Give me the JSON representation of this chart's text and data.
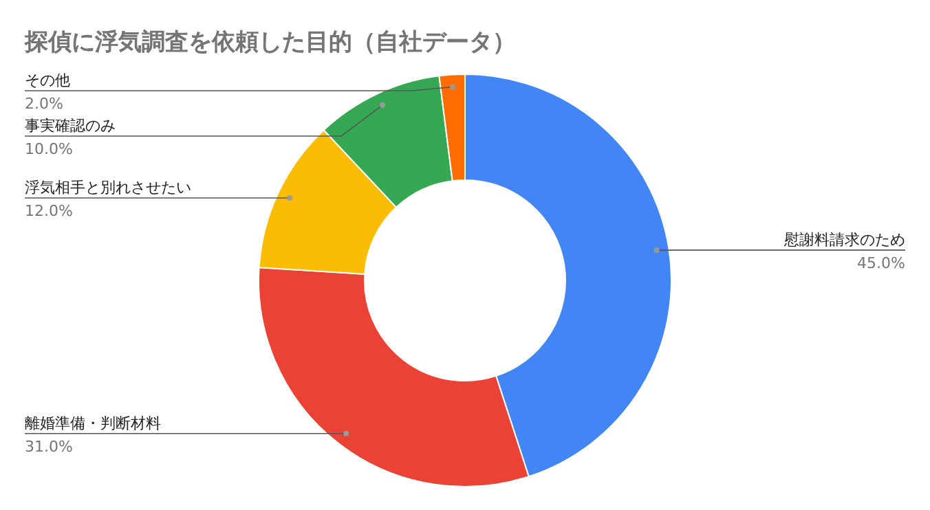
{
  "chart_data": {
    "type": "donut",
    "title": "探偵に浮気調査を依頼した目的（自社データ）",
    "categories": [
      "慰謝料請求のため",
      "離婚準備・判断材料",
      "浮気相手と別れさせたい",
      "事実確認のみ",
      "その他"
    ],
    "values": [
      45.0,
      31.0,
      12.0,
      10.0,
      2.0
    ],
    "colors": [
      "#4285f4",
      "#ea4335",
      "#fbbc04",
      "#34a853",
      "#ff6d01"
    ],
    "value_labels": [
      "45.0%",
      "31.0%",
      "12.0%",
      "10.0%",
      "2.0%"
    ]
  }
}
